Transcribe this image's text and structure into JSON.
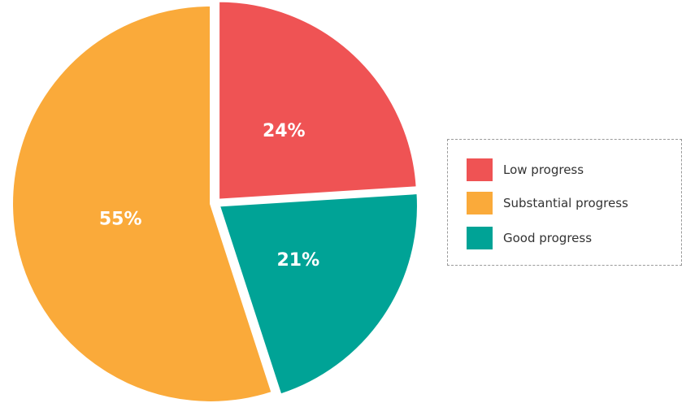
{
  "chart_data": {
    "type": "pie",
    "title": "",
    "slices": [
      {
        "name": "Low progress",
        "value": 24,
        "label": "24%",
        "color": "#EF5354"
      },
      {
        "name": "Good progress",
        "value": 21,
        "label": "21%",
        "color": "#00A396"
      },
      {
        "name": "Substantial progress",
        "value": 55,
        "label": "55%",
        "color": "#FAAA3A"
      }
    ],
    "legend": {
      "position": "right",
      "items": [
        {
          "name": "Low progress",
          "color": "#EF5354"
        },
        {
          "name": "Substantial progress",
          "color": "#FAAA3A"
        },
        {
          "name": "Good progress",
          "color": "#00A396"
        }
      ]
    }
  }
}
